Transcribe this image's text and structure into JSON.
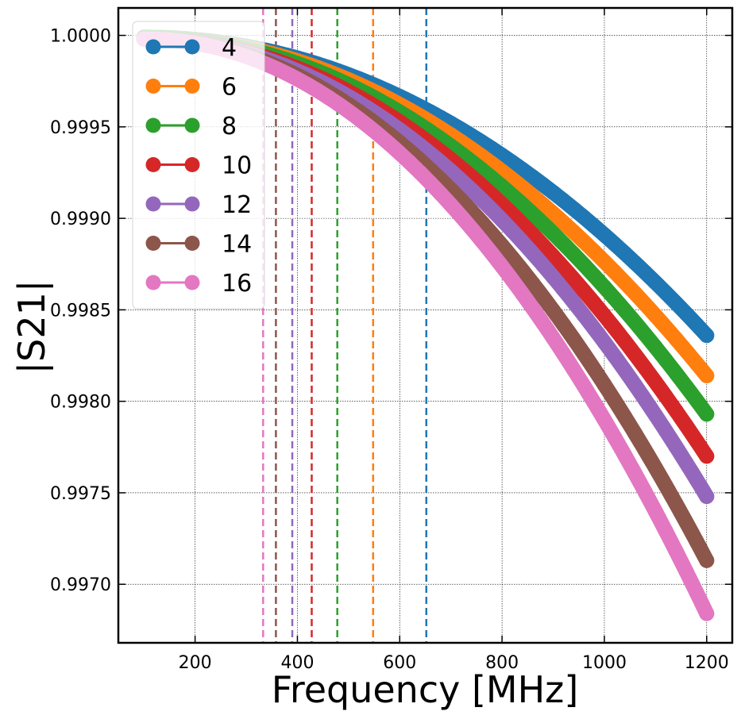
{
  "chart_data": {
    "type": "line",
    "title": "",
    "xlabel": "Frequency [MHz]",
    "ylabel": "|S21|",
    "xlim": [
      50,
      1250
    ],
    "ylim": [
      0.99668,
      1.00015
    ],
    "x_ticks": [
      200,
      400,
      600,
      800,
      1000,
      1200
    ],
    "y_ticks": [
      0.997,
      0.9975,
      0.998,
      0.9985,
      0.999,
      0.9995,
      1.0
    ],
    "x_tick_labels": [
      "200",
      "400",
      "600",
      "800",
      "1000",
      "1200"
    ],
    "y_tick_labels": [
      "0.9970",
      "0.9975",
      "0.9980",
      "0.9985",
      "0.9990",
      "0.9995",
      "1.0000"
    ],
    "grid": true,
    "legend_position": "top-left",
    "x_range_of_series": [
      100,
      1200
    ],
    "series": [
      {
        "name": "4",
        "color": "#1f77b4",
        "y_at_100": 0.99999,
        "y_at_1200": 0.99836,
        "cutoff_mhz": 652
      },
      {
        "name": "6",
        "color": "#ff7f0e",
        "y_at_100": 0.99999,
        "y_at_1200": 0.99814,
        "cutoff_mhz": 548
      },
      {
        "name": "8",
        "color": "#2ca02c",
        "y_at_100": 0.99999,
        "y_at_1200": 0.99793,
        "cutoff_mhz": 478
      },
      {
        "name": "10",
        "color": "#d62728",
        "y_at_100": 0.99998,
        "y_at_1200": 0.9977,
        "cutoff_mhz": 428
      },
      {
        "name": "12",
        "color": "#9467bd",
        "y_at_100": 0.99998,
        "y_at_1200": 0.99748,
        "cutoff_mhz": 390
      },
      {
        "name": "14",
        "color": "#8c564b",
        "y_at_100": 0.99998,
        "y_at_1200": 0.99713,
        "cutoff_mhz": 358
      },
      {
        "name": "16",
        "color": "#e377c2",
        "y_at_100": 0.99998,
        "y_at_1200": 0.99684,
        "cutoff_mhz": 333
      }
    ]
  }
}
